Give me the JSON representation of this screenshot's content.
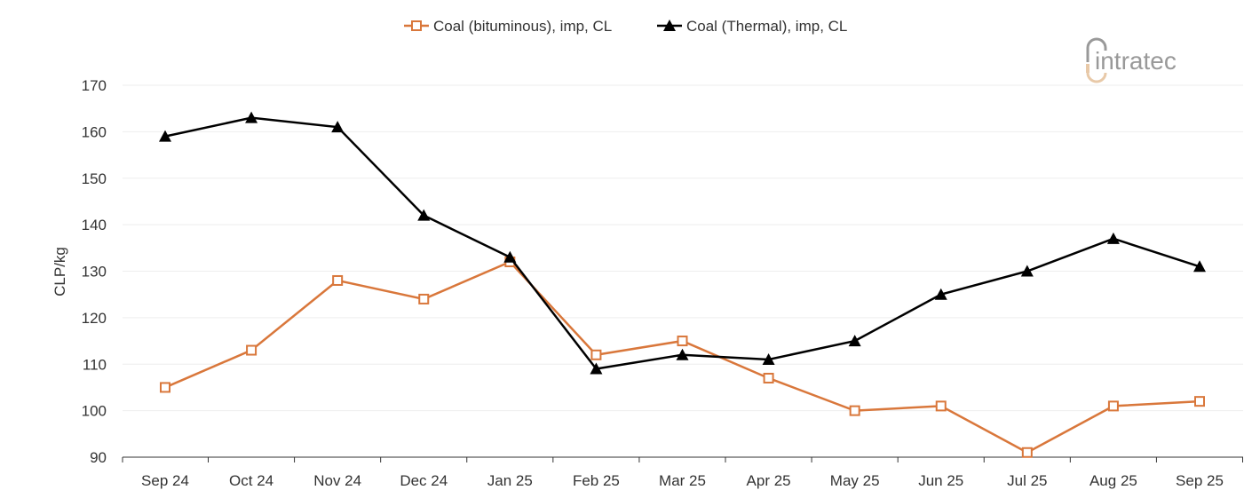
{
  "chart_data": {
    "type": "line",
    "title": "",
    "xlabel": "",
    "ylabel": "CLP/kg",
    "ylim": [
      90,
      170
    ],
    "yticks": [
      90,
      100,
      110,
      120,
      130,
      140,
      150,
      160,
      170
    ],
    "grid": true,
    "legend_position": "top",
    "categories": [
      "Sep 24",
      "Oct 24",
      "Nov 24",
      "Dec 24",
      "Jan 25",
      "Feb 25",
      "Mar 25",
      "Apr 25",
      "May 25",
      "Jun 25",
      "Jul 25",
      "Aug 25",
      "Sep 25"
    ],
    "series": [
      {
        "name": "Coal (bituminous), imp, CL",
        "color": "#D9773B",
        "marker": "open-square",
        "values": [
          105,
          113,
          128,
          124,
          132,
          112,
          115,
          107,
          100,
          101,
          91,
          101,
          102
        ]
      },
      {
        "name": "Coal (Thermal), imp, CL",
        "color": "#000000",
        "marker": "filled-triangle",
        "values": [
          159,
          163,
          161,
          142,
          133,
          109,
          112,
          111,
          115,
          125,
          130,
          137,
          131
        ]
      }
    ]
  },
  "logo": {
    "text": "intratec"
  }
}
